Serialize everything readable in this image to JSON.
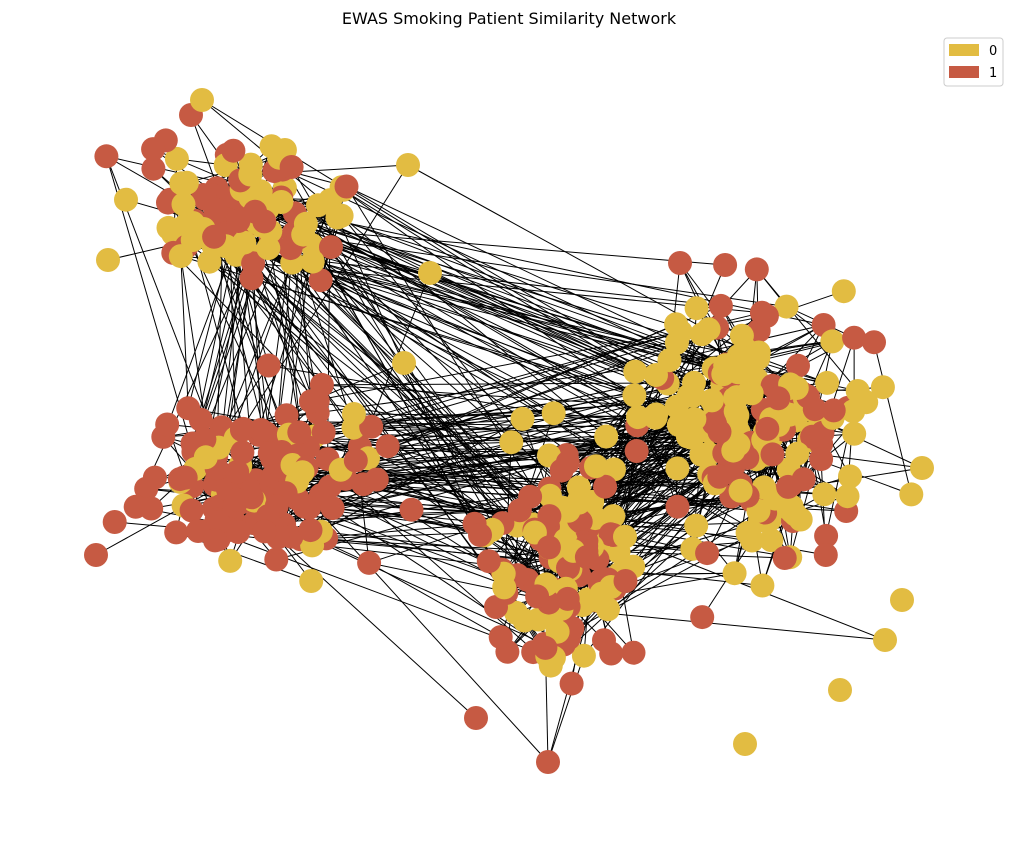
{
  "title": "EWAS Smoking Patient Similarity Network",
  "legend": {
    "placement": "top-right",
    "entries": [
      {
        "label": "0",
        "color": "#e2bc42"
      },
      {
        "label": "1",
        "color": "#c65a43"
      }
    ]
  },
  "colors": {
    "class_0": "#e2bc42",
    "class_1": "#c65a43",
    "edge": "#000000",
    "background": "#ffffff"
  },
  "network": {
    "node_classes": [
      "0",
      "1"
    ],
    "edges_visible": true
  }
}
